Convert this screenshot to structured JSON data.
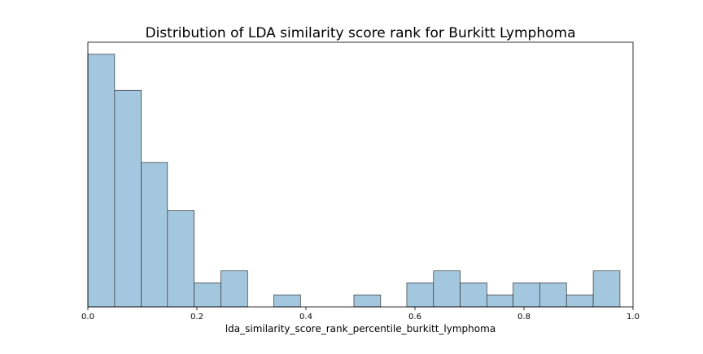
{
  "chart_data": {
    "type": "bar",
    "title": "Distribution of LDA similarity score rank for Burkitt Lymphoma",
    "xlabel": "lda_similarity_score_rank_percentile_burkitt_lymphoma",
    "ylabel": "",
    "xlim": [
      0.0,
      1.0
    ],
    "ylim": [
      0,
      22
    ],
    "xticks": [
      0.0,
      0.2,
      0.4,
      0.6,
      0.8,
      1.0
    ],
    "xtick_labels": [
      "0.0",
      "0.2",
      "0.4",
      "0.6",
      "0.8",
      "1.0"
    ],
    "show_y_ticks": false,
    "grid": false,
    "bar_color": "#a3c7df",
    "edge_color": "#333333",
    "bins": [
      {
        "x0": 0.0,
        "x1": 0.049,
        "count": 21
      },
      {
        "x0": 0.049,
        "x1": 0.098,
        "count": 18
      },
      {
        "x0": 0.098,
        "x1": 0.146,
        "count": 12
      },
      {
        "x0": 0.146,
        "x1": 0.195,
        "count": 8
      },
      {
        "x0": 0.195,
        "x1": 0.244,
        "count": 2
      },
      {
        "x0": 0.244,
        "x1": 0.293,
        "count": 3
      },
      {
        "x0": 0.293,
        "x1": 0.341,
        "count": 0
      },
      {
        "x0": 0.341,
        "x1": 0.39,
        "count": 1
      },
      {
        "x0": 0.39,
        "x1": 0.439,
        "count": 0
      },
      {
        "x0": 0.439,
        "x1": 0.488,
        "count": 0
      },
      {
        "x0": 0.488,
        "x1": 0.537,
        "count": 1
      },
      {
        "x0": 0.537,
        "x1": 0.585,
        "count": 0
      },
      {
        "x0": 0.585,
        "x1": 0.634,
        "count": 2
      },
      {
        "x0": 0.634,
        "x1": 0.683,
        "count": 3
      },
      {
        "x0": 0.683,
        "x1": 0.732,
        "count": 2
      },
      {
        "x0": 0.732,
        "x1": 0.78,
        "count": 1
      },
      {
        "x0": 0.78,
        "x1": 0.829,
        "count": 2
      },
      {
        "x0": 0.829,
        "x1": 0.878,
        "count": 2
      },
      {
        "x0": 0.878,
        "x1": 0.927,
        "count": 1
      },
      {
        "x0": 0.927,
        "x1": 0.976,
        "count": 3
      }
    ]
  }
}
